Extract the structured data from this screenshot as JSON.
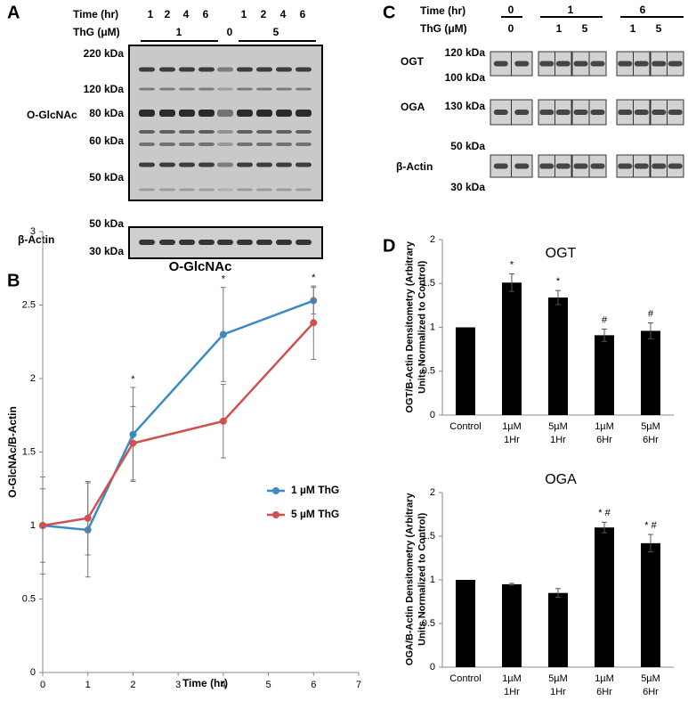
{
  "panels": {
    "a": "A",
    "b": "B",
    "c": "C",
    "d": "D"
  },
  "blot_a": {
    "time_label": "Time (hr)",
    "times": [
      "1",
      "2",
      "4",
      "6",
      "1",
      "2",
      "4",
      "6"
    ],
    "thg_label": "ThG (μM)",
    "doses": [
      "1",
      "0",
      "5"
    ],
    "markers": [
      "220 kDa",
      "120 kDa",
      "80 kDa",
      "60 kDa",
      "50 kDa"
    ],
    "target": "O-GlcNAc",
    "actin_markers": [
      "50 kDa",
      "30 kDa"
    ],
    "actin": "β-Actin"
  },
  "blot_c": {
    "time_label": "Time (hr)",
    "times": [
      "0",
      "1",
      "6"
    ],
    "thg_label": "ThG (μM)",
    "doses": [
      "0",
      "1",
      "5",
      "1",
      "5"
    ],
    "rows": [
      {
        "label": "OGT",
        "markers": [
          "120 kDa",
          "100 kDa"
        ]
      },
      {
        "label": "OGA",
        "markers": [
          "130 kDa"
        ]
      },
      {
        "label": "β-Actin",
        "markers": [
          "50 kDa",
          "30 kDa"
        ]
      }
    ]
  },
  "chart_data": [
    {
      "type": "line",
      "title": "O-GlcNAc",
      "x_label": "Time (hr)",
      "y_label": "O-GlcNAc/B-Actin",
      "x": [
        0,
        1,
        2,
        4,
        6
      ],
      "xlim": [
        0,
        7
      ],
      "xticks": [
        0,
        1,
        2,
        3,
        4,
        5,
        6,
        7
      ],
      "ylim": [
        0,
        3
      ],
      "yticks": [
        0,
        0.5,
        1,
        1.5,
        2,
        2.5,
        3
      ],
      "legend": "right",
      "annotations": [
        null,
        null,
        "*",
        "*",
        "*"
      ],
      "series": [
        {
          "name": "1 µM ThG",
          "color": "#3b8bc2",
          "values": [
            1,
            0.97,
            1.62,
            2.3,
            2.53
          ],
          "errors": [
            0.33,
            0.32,
            0.32,
            0.32,
            0.09
          ]
        },
        {
          "name": "5 µM ThG",
          "color": "#d0504f",
          "values": [
            1,
            1.05,
            1.56,
            1.71,
            2.38
          ],
          "errors": [
            0.25,
            0.25,
            0.25,
            0.25,
            0.25
          ]
        }
      ]
    },
    {
      "type": "bar",
      "title": "OGT",
      "y_label": "OGT/B-Actin Densitometry (Arbitrary Units Normalized to Control)",
      "color": "#000000",
      "categories": [
        "Control",
        "1µM 1Hr",
        "5µM 1Hr",
        "1µM 6Hr",
        "5µM 6Hr"
      ],
      "values": [
        1,
        1.51,
        1.34,
        0.91,
        0.96
      ],
      "errors": [
        0,
        0.1,
        0.08,
        0.07,
        0.09
      ],
      "annotations": [
        null,
        "*",
        "*",
        "#",
        "#"
      ],
      "ylim": [
        0,
        2
      ],
      "yticks": [
        0,
        0.5,
        1,
        1.5,
        2
      ]
    },
    {
      "type": "bar",
      "title": "OGA",
      "y_label": "OGA/B-Actin Densitometry (Arbitrary Units Normalized to Control)",
      "color": "#000000",
      "categories": [
        "Control",
        "1µM 1Hr",
        "5µM 1Hr",
        "1µM 6Hr",
        "5µM 6Hr"
      ],
      "values": [
        1,
        0.95,
        0.85,
        1.6,
        1.42
      ],
      "errors": [
        0,
        0.01,
        0.05,
        0.06,
        0.1
      ],
      "annotations": [
        null,
        null,
        null,
        "* #",
        "* #"
      ],
      "ylim": [
        0,
        2
      ],
      "yticks": [
        0,
        0.5,
        1,
        1.5,
        2
      ]
    }
  ]
}
